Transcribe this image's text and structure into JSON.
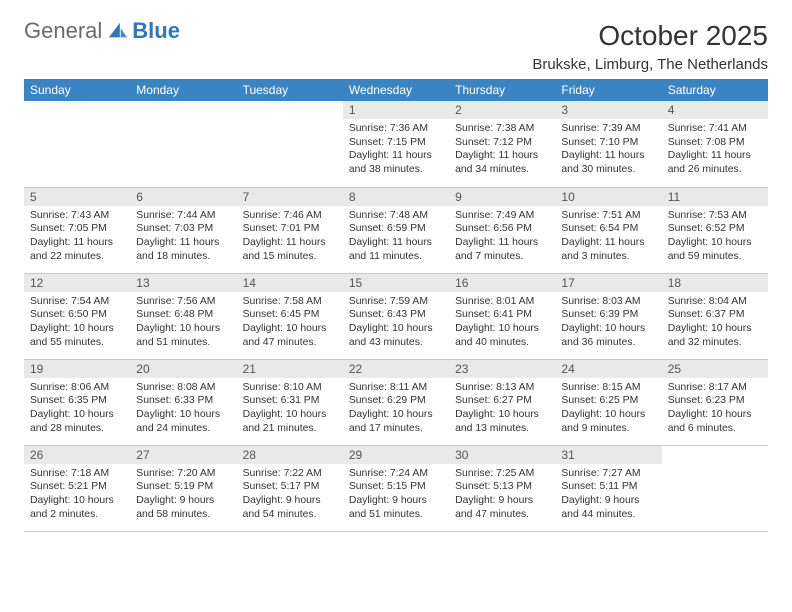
{
  "branding": {
    "word1": "General",
    "word2": "Blue",
    "logo_color": "#2e77b8",
    "word1_color": "#6b6b6b"
  },
  "title": {
    "month": "October 2025",
    "location": "Brukske, Limburg, The Netherlands"
  },
  "colors": {
    "header_bg": "#3b84c4",
    "header_fg": "#ffffff",
    "dayhead_bg": "#e9e9e9",
    "dayhead_fg": "#555555",
    "rule": "#c9c9c9"
  },
  "weekdays": [
    "Sunday",
    "Monday",
    "Tuesday",
    "Wednesday",
    "Thursday",
    "Friday",
    "Saturday"
  ],
  "weeks": [
    [
      null,
      null,
      null,
      {
        "n": "1",
        "sunrise": "7:36 AM",
        "sunset": "7:15 PM",
        "daylight": "11 hours and 38 minutes."
      },
      {
        "n": "2",
        "sunrise": "7:38 AM",
        "sunset": "7:12 PM",
        "daylight": "11 hours and 34 minutes."
      },
      {
        "n": "3",
        "sunrise": "7:39 AM",
        "sunset": "7:10 PM",
        "daylight": "11 hours and 30 minutes."
      },
      {
        "n": "4",
        "sunrise": "7:41 AM",
        "sunset": "7:08 PM",
        "daylight": "11 hours and 26 minutes."
      }
    ],
    [
      {
        "n": "5",
        "sunrise": "7:43 AM",
        "sunset": "7:05 PM",
        "daylight": "11 hours and 22 minutes."
      },
      {
        "n": "6",
        "sunrise": "7:44 AM",
        "sunset": "7:03 PM",
        "daylight": "11 hours and 18 minutes."
      },
      {
        "n": "7",
        "sunrise": "7:46 AM",
        "sunset": "7:01 PM",
        "daylight": "11 hours and 15 minutes."
      },
      {
        "n": "8",
        "sunrise": "7:48 AM",
        "sunset": "6:59 PM",
        "daylight": "11 hours and 11 minutes."
      },
      {
        "n": "9",
        "sunrise": "7:49 AM",
        "sunset": "6:56 PM",
        "daylight": "11 hours and 7 minutes."
      },
      {
        "n": "10",
        "sunrise": "7:51 AM",
        "sunset": "6:54 PM",
        "daylight": "11 hours and 3 minutes."
      },
      {
        "n": "11",
        "sunrise": "7:53 AM",
        "sunset": "6:52 PM",
        "daylight": "10 hours and 59 minutes."
      }
    ],
    [
      {
        "n": "12",
        "sunrise": "7:54 AM",
        "sunset": "6:50 PM",
        "daylight": "10 hours and 55 minutes."
      },
      {
        "n": "13",
        "sunrise": "7:56 AM",
        "sunset": "6:48 PM",
        "daylight": "10 hours and 51 minutes."
      },
      {
        "n": "14",
        "sunrise": "7:58 AM",
        "sunset": "6:45 PM",
        "daylight": "10 hours and 47 minutes."
      },
      {
        "n": "15",
        "sunrise": "7:59 AM",
        "sunset": "6:43 PM",
        "daylight": "10 hours and 43 minutes."
      },
      {
        "n": "16",
        "sunrise": "8:01 AM",
        "sunset": "6:41 PM",
        "daylight": "10 hours and 40 minutes."
      },
      {
        "n": "17",
        "sunrise": "8:03 AM",
        "sunset": "6:39 PM",
        "daylight": "10 hours and 36 minutes."
      },
      {
        "n": "18",
        "sunrise": "8:04 AM",
        "sunset": "6:37 PM",
        "daylight": "10 hours and 32 minutes."
      }
    ],
    [
      {
        "n": "19",
        "sunrise": "8:06 AM",
        "sunset": "6:35 PM",
        "daylight": "10 hours and 28 minutes."
      },
      {
        "n": "20",
        "sunrise": "8:08 AM",
        "sunset": "6:33 PM",
        "daylight": "10 hours and 24 minutes."
      },
      {
        "n": "21",
        "sunrise": "8:10 AM",
        "sunset": "6:31 PM",
        "daylight": "10 hours and 21 minutes."
      },
      {
        "n": "22",
        "sunrise": "8:11 AM",
        "sunset": "6:29 PM",
        "daylight": "10 hours and 17 minutes."
      },
      {
        "n": "23",
        "sunrise": "8:13 AM",
        "sunset": "6:27 PM",
        "daylight": "10 hours and 13 minutes."
      },
      {
        "n": "24",
        "sunrise": "8:15 AM",
        "sunset": "6:25 PM",
        "daylight": "10 hours and 9 minutes."
      },
      {
        "n": "25",
        "sunrise": "8:17 AM",
        "sunset": "6:23 PM",
        "daylight": "10 hours and 6 minutes."
      }
    ],
    [
      {
        "n": "26",
        "sunrise": "7:18 AM",
        "sunset": "5:21 PM",
        "daylight": "10 hours and 2 minutes."
      },
      {
        "n": "27",
        "sunrise": "7:20 AM",
        "sunset": "5:19 PM",
        "daylight": "9 hours and 58 minutes."
      },
      {
        "n": "28",
        "sunrise": "7:22 AM",
        "sunset": "5:17 PM",
        "daylight": "9 hours and 54 minutes."
      },
      {
        "n": "29",
        "sunrise": "7:24 AM",
        "sunset": "5:15 PM",
        "daylight": "9 hours and 51 minutes."
      },
      {
        "n": "30",
        "sunrise": "7:25 AM",
        "sunset": "5:13 PM",
        "daylight": "9 hours and 47 minutes."
      },
      {
        "n": "31",
        "sunrise": "7:27 AM",
        "sunset": "5:11 PM",
        "daylight": "9 hours and 44 minutes."
      },
      null
    ]
  ],
  "labels": {
    "sunrise": "Sunrise:",
    "sunset": "Sunset:",
    "daylight": "Daylight:"
  }
}
